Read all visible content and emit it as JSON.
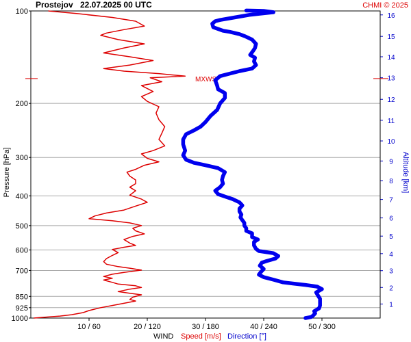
{
  "header": {
    "station": "Prostejov",
    "datetime": "22.07.2025 00 UTC",
    "credit": "CHMI © 2025"
  },
  "chart_data": {
    "type": "line",
    "y_axis_left": {
      "label": "Pressure [hPa]",
      "scale": "log",
      "range": [
        1000,
        100
      ],
      "ticks": [
        100,
        200,
        300,
        400,
        500,
        600,
        700,
        850,
        925,
        1000
      ]
    },
    "y_axis_right": {
      "label": "Altitude [km]",
      "ticks": [
        {
          "km": 1,
          "hPa": 900
        },
        {
          "km": 2,
          "hPa": 795
        },
        {
          "km": 3,
          "hPa": 701
        },
        {
          "km": 4,
          "hPa": 617
        },
        {
          "km": 5,
          "hPa": 541
        },
        {
          "km": 6,
          "hPa": 472
        },
        {
          "km": 7,
          "hPa": 411
        },
        {
          "km": 8,
          "hPa": 357
        },
        {
          "km": 9,
          "hPa": 308
        },
        {
          "km": 10,
          "hPa": 265
        },
        {
          "km": 11,
          "hPa": 227
        },
        {
          "km": 12,
          "hPa": 194
        },
        {
          "km": 13,
          "hPa": 165
        },
        {
          "km": 14,
          "hPa": 141
        },
        {
          "km": 15,
          "hPa": 121
        },
        {
          "km": 16,
          "hPa": 103
        }
      ]
    },
    "x_axis": {
      "speed_range": [
        0,
        60
      ],
      "direction_range": [
        0,
        360
      ],
      "ticks": [
        {
          "speed": 10,
          "direction": 60,
          "label": "10 / 60"
        },
        {
          "speed": 20,
          "direction": 120,
          "label": "20 / 120"
        },
        {
          "speed": 30,
          "direction": 180,
          "label": "30 / 180"
        },
        {
          "speed": 40,
          "direction": 240,
          "label": "40 / 240"
        },
        {
          "speed": 50,
          "direction": 300,
          "label": "50 / 300"
        }
      ]
    },
    "legend": {
      "prefix": "WIND",
      "speed": "Speed [m/s]",
      "direction": "Direction [°]"
    },
    "marker": {
      "label": "MXWS",
      "pressure_hPa": 166
    },
    "series": [
      {
        "name": "Speed [m/s]",
        "color": "#dd0000",
        "points": [
          [
            0.5,
            1000
          ],
          [
            2,
            995
          ],
          [
            5,
            985
          ],
          [
            7,
            975
          ],
          [
            9,
            960
          ],
          [
            10,
            945
          ],
          [
            11,
            935
          ],
          [
            12,
            925
          ],
          [
            14,
            910
          ],
          [
            16,
            895
          ],
          [
            18,
            880
          ],
          [
            17,
            870
          ],
          [
            17.5,
            855
          ],
          [
            19,
            840
          ],
          [
            17,
            830
          ],
          [
            15,
            820
          ],
          [
            17,
            805
          ],
          [
            19,
            795
          ],
          [
            18,
            785
          ],
          [
            15,
            775
          ],
          [
            14,
            765
          ],
          [
            12.5,
            752
          ],
          [
            14,
            742
          ],
          [
            12.5,
            732
          ],
          [
            14,
            720
          ],
          [
            16,
            710
          ],
          [
            19,
            698
          ],
          [
            17,
            688
          ],
          [
            15,
            680
          ],
          [
            13,
            668
          ],
          [
            12.5,
            655
          ],
          [
            13,
            640
          ],
          [
            14,
            625
          ],
          [
            15,
            612
          ],
          [
            14,
            598
          ],
          [
            16,
            588
          ],
          [
            18,
            580
          ],
          [
            17,
            570
          ],
          [
            16,
            555
          ],
          [
            17.5,
            542
          ],
          [
            19.5,
            532
          ],
          [
            18,
            520
          ],
          [
            17.5,
            510
          ],
          [
            19,
            500
          ],
          [
            17,
            490
          ],
          [
            14,
            482
          ],
          [
            10,
            475
          ],
          [
            11,
            465
          ],
          [
            13,
            455
          ],
          [
            16,
            445
          ],
          [
            18,
            432
          ],
          [
            20,
            420
          ],
          [
            19,
            410
          ],
          [
            17,
            398
          ],
          [
            18,
            385
          ],
          [
            17,
            375
          ],
          [
            18,
            365
          ],
          [
            18,
            355
          ],
          [
            17,
            345
          ],
          [
            16.5,
            335
          ],
          [
            18,
            328
          ],
          [
            19.5,
            318
          ],
          [
            22,
            310
          ],
          [
            20,
            302
          ],
          [
            19,
            292
          ],
          [
            21,
            285
          ],
          [
            23,
            275
          ],
          [
            22,
            262
          ],
          [
            22.5,
            250
          ],
          [
            23,
            238
          ],
          [
            22,
            226
          ],
          [
            21.5,
            215
          ],
          [
            22,
            205
          ],
          [
            20,
            197
          ],
          [
            19,
            190
          ],
          [
            21,
            183
          ],
          [
            19,
            175
          ],
          [
            22.5,
            170
          ],
          [
            20.5,
            165
          ],
          [
            26.5,
            163
          ],
          [
            22,
            160
          ],
          [
            16,
            157
          ],
          [
            12.5,
            154
          ],
          [
            17,
            150
          ],
          [
            21,
            145
          ],
          [
            17,
            141
          ],
          [
            12.5,
            137
          ],
          [
            16,
            132
          ],
          [
            19.5,
            128
          ],
          [
            15,
            124
          ],
          [
            12,
            120
          ],
          [
            13,
            118
          ],
          [
            16,
            115
          ],
          [
            19.5,
            112
          ],
          [
            18,
            108
          ],
          [
            14,
            105
          ],
          [
            8,
            102
          ],
          [
            3,
            100
          ]
        ]
      },
      {
        "name": "Direction [°]",
        "color": "#0000ee",
        "points": [
          [
            283,
            1000
          ],
          [
            289,
            992
          ],
          [
            291,
            980
          ],
          [
            293,
            965
          ],
          [
            292,
            950
          ],
          [
            297,
            930
          ],
          [
            298,
            910
          ],
          [
            298,
            890
          ],
          [
            298,
            865
          ],
          [
            296,
            845
          ],
          [
            294,
            825
          ],
          [
            300,
            805
          ],
          [
            295,
            790
          ],
          [
            283,
            780
          ],
          [
            270,
            772
          ],
          [
            260,
            765
          ],
          [
            250,
            750
          ],
          [
            240,
            736
          ],
          [
            235,
            722
          ],
          [
            237,
            708
          ],
          [
            240,
            692
          ],
          [
            236,
            675
          ],
          [
            238,
            660
          ],
          [
            243,
            652
          ],
          [
            252,
            640
          ],
          [
            255,
            628
          ],
          [
            250,
            615
          ],
          [
            235,
            605
          ],
          [
            232,
            595
          ],
          [
            230,
            580
          ],
          [
            230,
            565
          ],
          [
            234,
            555
          ],
          [
            228,
            545
          ],
          [
            228,
            530
          ],
          [
            222,
            520
          ],
          [
            222,
            510
          ],
          [
            220,
            500
          ],
          [
            220,
            490
          ],
          [
            218,
            480
          ],
          [
            216,
            470
          ],
          [
            217,
            460
          ],
          [
            215,
            450
          ],
          [
            215,
            440
          ],
          [
            218,
            430
          ],
          [
            215,
            420
          ],
          [
            208,
            410
          ],
          [
            200,
            402
          ],
          [
            193,
            395
          ],
          [
            190,
            385
          ],
          [
            195,
            375
          ],
          [
            198,
            365
          ],
          [
            197,
            355
          ],
          [
            198,
            345
          ],
          [
            200,
            335
          ],
          [
            193,
            325
          ],
          [
            180,
            318
          ],
          [
            168,
            312
          ],
          [
            160,
            305
          ],
          [
            157,
            295
          ],
          [
            159,
            285
          ],
          [
            157,
            272
          ],
          [
            157,
            262
          ],
          [
            160,
            252
          ],
          [
            168,
            245
          ],
          [
            175,
            238
          ],
          [
            180,
            230
          ],
          [
            185,
            220
          ],
          [
            192,
            210
          ],
          [
            195,
            200
          ],
          [
            200,
            192
          ],
          [
            200,
            185
          ],
          [
            193,
            180
          ],
          [
            192,
            175
          ],
          [
            190,
            168
          ],
          [
            195,
            163
          ],
          [
            205,
            160
          ],
          [
            215,
            157
          ],
          [
            228,
            154
          ],
          [
            232,
            150
          ],
          [
            230,
            146
          ],
          [
            231,
            142
          ],
          [
            226,
            139
          ],
          [
            229,
            135
          ],
          [
            231,
            132
          ],
          [
            232,
            128
          ],
          [
            228,
            124
          ],
          [
            221,
            121
          ],
          [
            215,
            119
          ],
          [
            205,
            117
          ],
          [
            198,
            116
          ],
          [
            188,
            113
          ],
          [
            187,
            110
          ],
          [
            190,
            108
          ],
          [
            195,
            107
          ],
          [
            210,
            105
          ],
          [
            225,
            103
          ],
          [
            250,
            101
          ],
          [
            240,
            100
          ],
          [
            222,
            99.7
          ]
        ]
      }
    ]
  }
}
